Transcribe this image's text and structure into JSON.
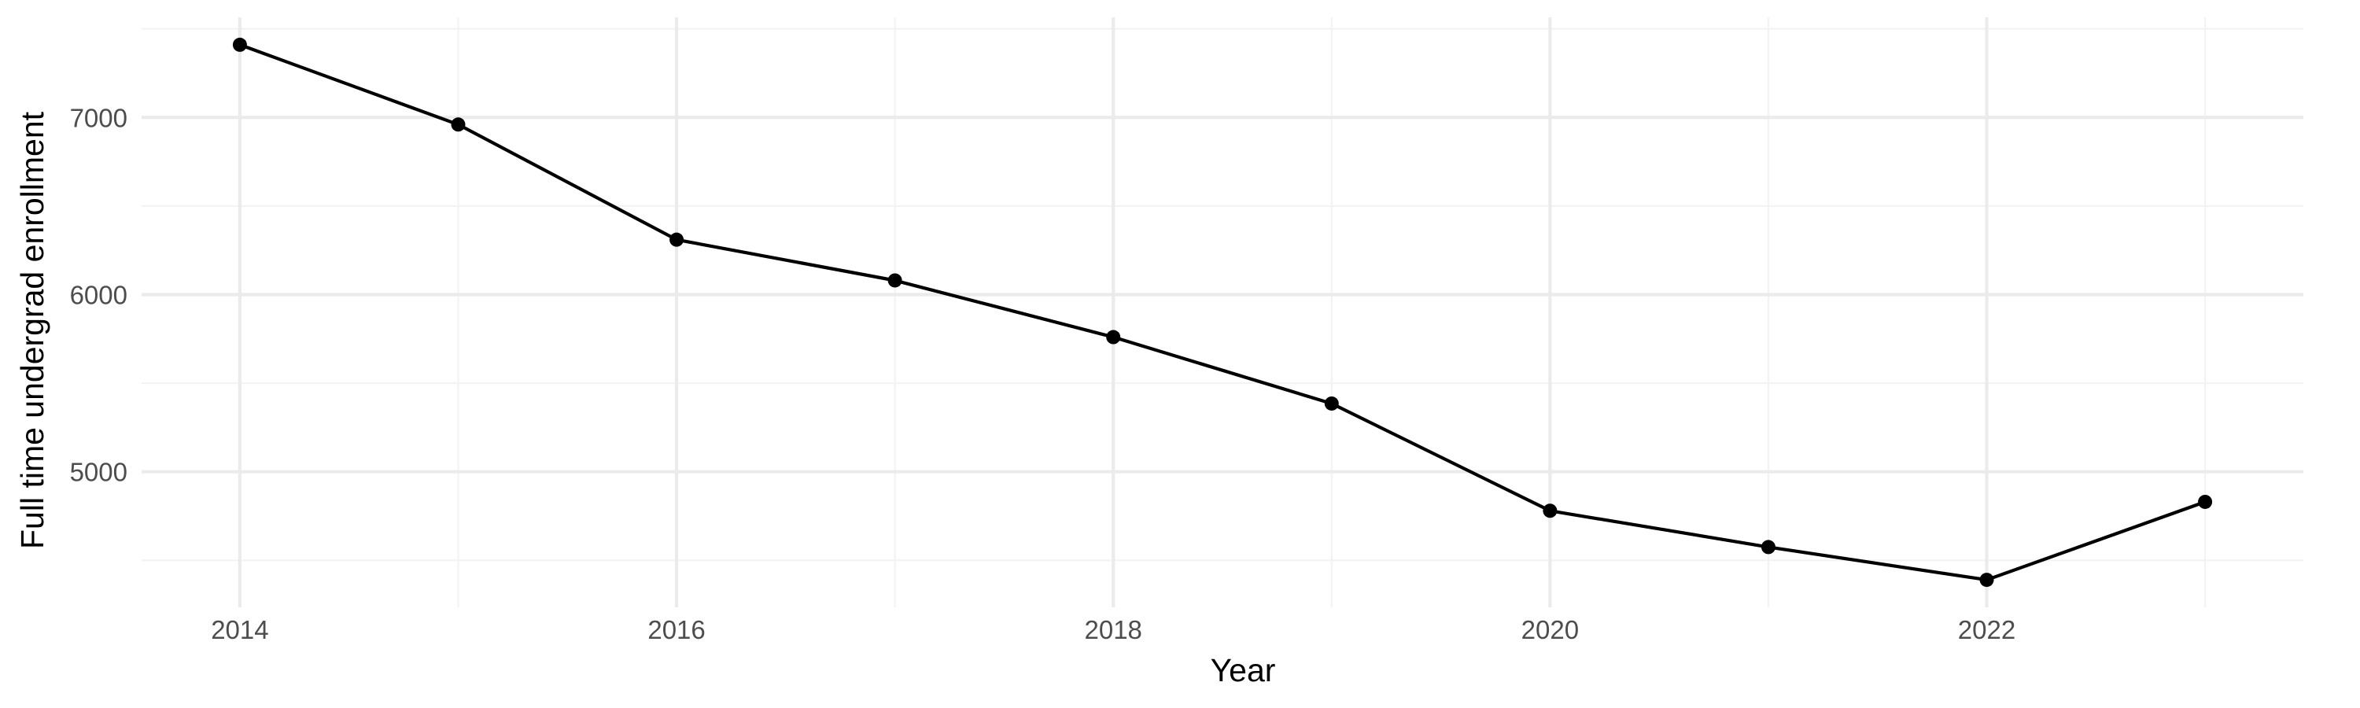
{
  "chart_data": {
    "type": "line",
    "title": "",
    "xlabel": "Year",
    "ylabel": "Full time undergrad enrollment",
    "x": [
      2014,
      2015,
      2016,
      2017,
      2018,
      2019,
      2020,
      2021,
      2022,
      2023
    ],
    "series": [
      {
        "values": [
          7410,
          6960,
          6310,
          6080,
          5760,
          5385,
          4780,
          4575,
          4390,
          4830
        ],
        "color": "#000000"
      }
    ],
    "xlim": [
      2013.55,
      2023.45
    ],
    "ylim": [
      4235,
      7565
    ],
    "x_ticks": [
      {
        "value": 2014,
        "label": "2014"
      },
      {
        "value": 2016,
        "label": "2016"
      },
      {
        "value": 2018,
        "label": "2018"
      },
      {
        "value": 2020,
        "label": "2020"
      },
      {
        "value": 2022,
        "label": "2022"
      }
    ],
    "x_minor_ticks": [
      2015,
      2017,
      2019,
      2021,
      2023
    ],
    "y_ticks": [
      {
        "value": 5000,
        "label": "5000"
      },
      {
        "value": 6000,
        "label": "6000"
      },
      {
        "value": 7000,
        "label": "7000"
      }
    ],
    "y_minor_ticks": [
      4500,
      5500,
      6500,
      7500
    ],
    "grid": true,
    "legend": "none"
  }
}
